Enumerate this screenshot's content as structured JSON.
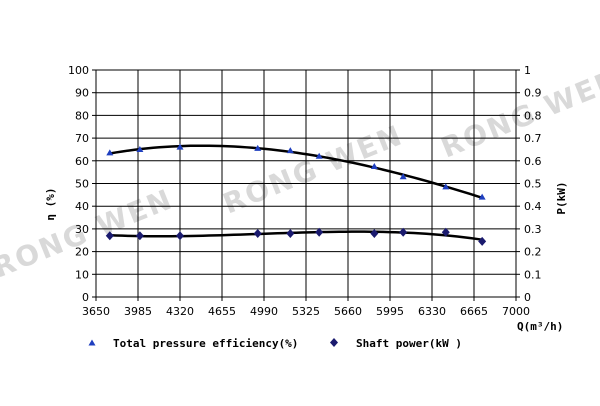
{
  "chart_data": {
    "type": "line",
    "title": "",
    "xlabel": "Q(m³/h)",
    "ylabel_left": "η (%)",
    "ylabel_right": "P(kW)",
    "x_ticks": [
      "3650",
      "3985",
      "4320",
      "4655",
      "4990",
      "5325",
      "5660",
      "5995",
      "6330",
      "6665",
      "7000"
    ],
    "xlim": [
      3650,
      7000
    ],
    "y_left_ticks": [
      "0",
      "10",
      "20",
      "30",
      "40",
      "50",
      "60",
      "70",
      "80",
      "90",
      "100"
    ],
    "y_left_lim": [
      0,
      100
    ],
    "y_right_ticks": [
      "0",
      "0.1",
      "0.2",
      "0.3",
      "0.4",
      "0.5",
      "0.6",
      "0.7",
      "0.8",
      "0.9",
      "1"
    ],
    "y_right_lim": [
      0,
      1
    ],
    "grid": true,
    "legend_position": "bottom",
    "watermark_text": "RONG WEN",
    "series": [
      {
        "name": "Total pressure efficiency(%)",
        "axis": "left",
        "marker": "triangle",
        "color": "#1f3fbf",
        "x": [
          3760,
          4000,
          4320,
          4940,
          5200,
          5430,
          5870,
          6100,
          6440,
          6730
        ],
        "y": [
          63.5,
          65,
          66,
          65.5,
          64.5,
          62,
          57.5,
          53,
          48.5,
          44
        ]
      },
      {
        "name": "Shaft power(kW )",
        "axis": "right",
        "marker": "diamond",
        "color": "#1a1a6e",
        "x": [
          3760,
          4000,
          4320,
          4940,
          5200,
          5430,
          5870,
          6100,
          6440,
          6730
        ],
        "y": [
          0.27,
          0.27,
          0.27,
          0.28,
          0.28,
          0.285,
          0.28,
          0.285,
          0.285,
          0.245
        ]
      }
    ]
  }
}
